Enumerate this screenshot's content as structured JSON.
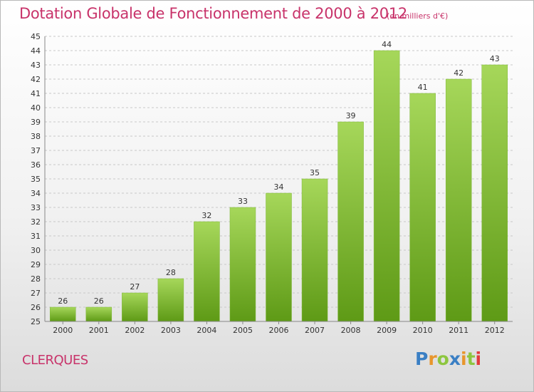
{
  "title": "Dotation Globale de Fonctionnement de 2000 à 2012",
  "subtitle": "(en milliers d'€)",
  "commune": "CLERQUES",
  "brand": {
    "letters": [
      "P",
      "r",
      "o",
      "x",
      "i",
      "t",
      "i"
    ],
    "colors": [
      "#3a7fc4",
      "#e8962c",
      "#8dc63f",
      "#3a7fc4",
      "#e8962c",
      "#8dc63f",
      "#e23b3b"
    ]
  },
  "colors": {
    "accent": "#c8336a",
    "bar_top": "#a6d75a",
    "bar_bottom": "#5e9a16",
    "grid": "#c8c8c8",
    "axis": "#888888"
  },
  "chart_data": {
    "type": "bar",
    "categories": [
      "2000",
      "2001",
      "2002",
      "2003",
      "2004",
      "2005",
      "2006",
      "2007",
      "2008",
      "2009",
      "2010",
      "2011",
      "2012"
    ],
    "values": [
      26,
      26,
      27,
      28,
      32,
      33,
      34,
      35,
      39,
      44,
      41,
      42,
      43
    ],
    "value_labels": [
      "26",
      "26",
      "27",
      "28",
      "32",
      "33",
      "34",
      "35",
      "39",
      "44",
      "41",
      "42",
      "43"
    ],
    "yticks": [
      "25",
      "26",
      "27",
      "28",
      "29",
      "30",
      "31",
      "32",
      "33",
      "34",
      "35",
      "36",
      "37",
      "38",
      "39",
      "40",
      "41",
      "42",
      "43",
      "44",
      "45"
    ],
    "ylim": [
      25,
      45
    ],
    "xlabel": "",
    "ylabel": "",
    "grid": true
  }
}
